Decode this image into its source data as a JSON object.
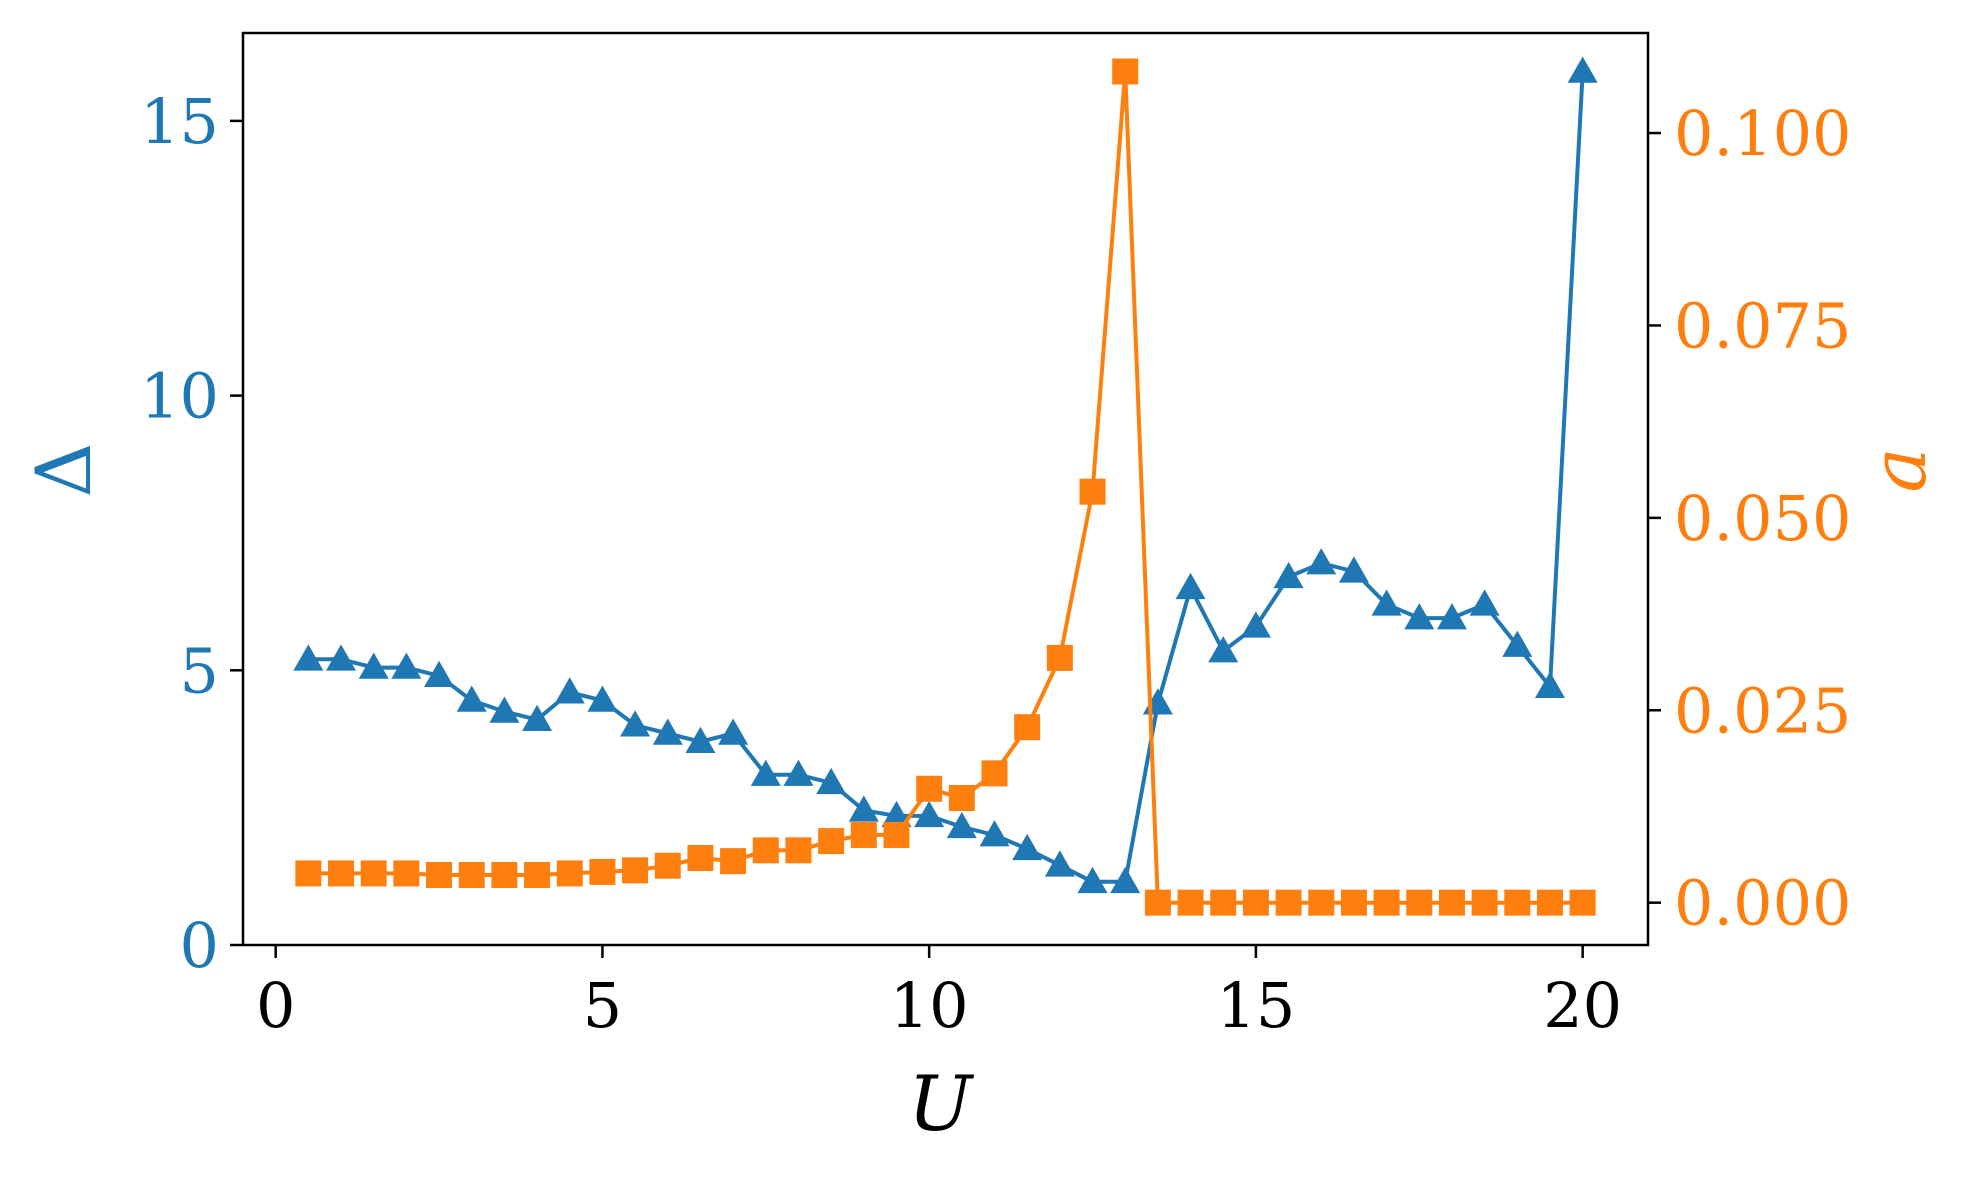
{
  "chart_data": {
    "type": "line",
    "title": "",
    "xlabel": "U",
    "ylabel_left": "Δ",
    "ylabel_right": "a",
    "xlim": [
      -0.5,
      21
    ],
    "ylim_left": [
      0,
      16.6
    ],
    "ylim_right": [
      -0.0055,
      0.113
    ],
    "x_ticks": [
      0,
      5,
      10,
      15,
      20
    ],
    "x_tick_labels": [
      "0",
      "5",
      "10",
      "15",
      "20"
    ],
    "y_left_ticks": [
      0,
      5,
      10,
      15
    ],
    "y_left_tick_labels": [
      "0",
      "5",
      "10",
      "15"
    ],
    "y_right_ticks": [
      0,
      0.025,
      0.05,
      0.075,
      0.1
    ],
    "y_right_tick_labels": [
      "0.000",
      "0.025",
      "0.050",
      "0.075",
      "0.100"
    ],
    "grid": false,
    "legend": "none",
    "series": [
      {
        "axis": "left",
        "color": "#1f77b4",
        "marker": "triangle",
        "x": [
          0.5,
          1,
          1.5,
          2,
          2.5,
          3,
          3.5,
          4,
          4.5,
          5,
          5.5,
          6,
          6.5,
          7,
          7.5,
          8,
          8.5,
          9,
          9.5,
          10,
          10.5,
          11,
          11.5,
          12,
          12.5,
          13,
          13.5,
          14,
          14.5,
          15,
          15.5,
          16,
          16.5,
          17,
          17.5,
          18,
          18.5,
          19,
          19.5,
          20
        ],
        "values": [
          5.2,
          5.2,
          5.05,
          5.05,
          4.9,
          4.45,
          4.25,
          4.1,
          4.6,
          4.45,
          4.0,
          3.85,
          3.7,
          3.85,
          3.1,
          3.1,
          2.95,
          2.45,
          2.35,
          2.35,
          2.15,
          2.0,
          1.75,
          1.45,
          1.15,
          1.15,
          4.4,
          6.5,
          5.35,
          5.8,
          6.7,
          6.95,
          6.8,
          6.2,
          5.95,
          5.95,
          6.2,
          5.45,
          4.7,
          15.9
        ]
      },
      {
        "axis": "right",
        "color": "#ff7f0e",
        "marker": "square",
        "x": [
          0.5,
          1,
          1.5,
          2,
          2.5,
          3,
          3.5,
          4,
          4.5,
          5,
          5.5,
          6,
          6.5,
          7,
          7.5,
          8,
          8.5,
          9,
          9.5,
          10,
          10.5,
          11,
          11.5,
          12,
          12.5,
          13,
          13.5,
          14,
          14.5,
          15,
          15.5,
          16,
          16.5,
          17,
          17.5,
          18,
          18.5,
          19,
          19.5,
          20
        ],
        "values": [
          0.0038,
          0.0038,
          0.0038,
          0.0038,
          0.0036,
          0.0036,
          0.0036,
          0.0036,
          0.0038,
          0.004,
          0.0042,
          0.0048,
          0.0058,
          0.0054,
          0.0068,
          0.0068,
          0.008,
          0.0088,
          0.0088,
          0.0148,
          0.0136,
          0.0168,
          0.0228,
          0.0318,
          0.0534,
          0.108,
          0.0,
          0.0,
          0.0,
          0.0,
          0.0,
          0.0,
          0.0,
          0.0,
          0.0,
          0.0,
          0.0,
          0.0,
          0.0,
          0.0
        ]
      }
    ]
  }
}
